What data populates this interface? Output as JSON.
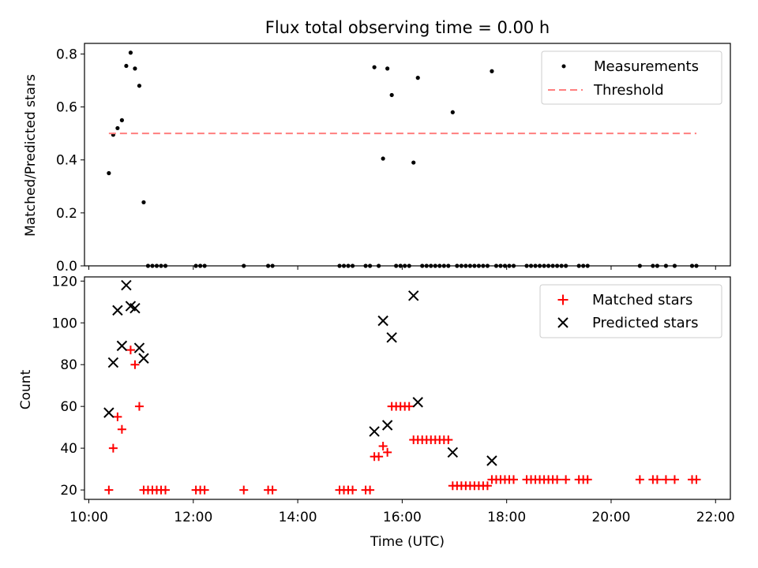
{
  "chart_data": [
    {
      "type": "scatter",
      "title": "Flux total observing time = 0.00 h",
      "xlabel": "",
      "ylabel": "Matched/Predicted stars",
      "xlim": [
        "09:55",
        "22:17"
      ],
      "ylim": [
        0,
        0.84
      ],
      "yticks": [
        "0.0",
        "0.2",
        "0.4",
        "0.6",
        "0.8"
      ],
      "legend_position": "top-right",
      "series": [
        {
          "name": "Measurements",
          "kind": "point",
          "color": "#000000",
          "points": [
            [
              "10:23",
              0.35
            ],
            [
              "10:28",
              0.495
            ],
            [
              "10:33",
              0.52
            ],
            [
              "10:38",
              0.55
            ],
            [
              "10:43",
              0.755
            ],
            [
              "10:48",
              0.805
            ],
            [
              "10:53",
              0.745
            ],
            [
              "10:58",
              0.68
            ],
            [
              "11:03",
              0.24
            ],
            [
              "11:08",
              0
            ],
            [
              "11:13",
              0
            ],
            [
              "11:18",
              0
            ],
            [
              "11:23",
              0
            ],
            [
              "11:28",
              0
            ],
            [
              "12:03",
              0
            ],
            [
              "12:08",
              0
            ],
            [
              "12:13",
              0
            ],
            [
              "12:58",
              0
            ],
            [
              "13:26",
              0
            ],
            [
              "13:31",
              0
            ],
            [
              "14:48",
              0
            ],
            [
              "14:53",
              0
            ],
            [
              "14:58",
              0
            ],
            [
              "15:03",
              0
            ],
            [
              "15:18",
              0
            ],
            [
              "15:23",
              0
            ],
            [
              "15:28",
              0.75
            ],
            [
              "15:33",
              0
            ],
            [
              "15:38",
              0.405
            ],
            [
              "15:43",
              0.745
            ],
            [
              "15:48",
              0.645
            ],
            [
              "15:53",
              0
            ],
            [
              "15:58",
              0
            ],
            [
              "16:03",
              0
            ],
            [
              "16:08",
              0
            ],
            [
              "16:13",
              0.39
            ],
            [
              "16:18",
              0.71
            ],
            [
              "16:23",
              0
            ],
            [
              "16:28",
              0
            ],
            [
              "16:33",
              0
            ],
            [
              "16:38",
              0
            ],
            [
              "16:43",
              0
            ],
            [
              "16:48",
              0
            ],
            [
              "16:53",
              0
            ],
            [
              "16:58",
              0.58
            ],
            [
              "17:03",
              0
            ],
            [
              "17:08",
              0
            ],
            [
              "17:13",
              0
            ],
            [
              "17:18",
              0
            ],
            [
              "17:23",
              0
            ],
            [
              "17:28",
              0
            ],
            [
              "17:33",
              0
            ],
            [
              "17:38",
              0
            ],
            [
              "17:43",
              0.735
            ],
            [
              "17:48",
              0
            ],
            [
              "17:53",
              0
            ],
            [
              "17:58",
              0
            ],
            [
              "18:03",
              0
            ],
            [
              "18:08",
              0
            ],
            [
              "18:23",
              0
            ],
            [
              "18:28",
              0
            ],
            [
              "18:33",
              0
            ],
            [
              "18:38",
              0
            ],
            [
              "18:43",
              0
            ],
            [
              "18:48",
              0
            ],
            [
              "18:53",
              0
            ],
            [
              "18:58",
              0
            ],
            [
              "19:03",
              0
            ],
            [
              "19:08",
              0
            ],
            [
              "19:23",
              0
            ],
            [
              "19:28",
              0
            ],
            [
              "19:33",
              0
            ],
            [
              "20:33",
              0
            ],
            [
              "20:48",
              0
            ],
            [
              "20:53",
              0
            ],
            [
              "21:03",
              0
            ],
            [
              "21:13",
              0
            ],
            [
              "21:33",
              0
            ],
            [
              "21:38",
              0
            ]
          ]
        },
        {
          "name": "Threshold",
          "kind": "line",
          "dash": "dashed",
          "color": "#ff7f7f",
          "points": [
            [
              "10:23",
              0.5
            ],
            [
              "21:38",
              0.5
            ]
          ]
        }
      ]
    },
    {
      "type": "scatter",
      "title": "",
      "xlabel": "Time (UTC)",
      "ylabel": "Count",
      "xlim": [
        "09:55",
        "22:17"
      ],
      "ylim": [
        15.5,
        122
      ],
      "yticks": [
        "20",
        "40",
        "60",
        "80",
        "100",
        "120"
      ],
      "xticks": [
        "10:00",
        "12:00",
        "14:00",
        "16:00",
        "18:00",
        "20:00",
        "22:00"
      ],
      "legend_position": "top-right",
      "series": [
        {
          "name": "Matched stars",
          "kind": "plus",
          "color": "#ff0000",
          "points": [
            [
              "10:23",
              20
            ],
            [
              "10:28",
              40
            ],
            [
              "10:33",
              55
            ],
            [
              "10:38",
              49
            ],
            [
              "10:48",
              87
            ],
            [
              "10:53",
              80
            ],
            [
              "10:58",
              60
            ],
            [
              "11:03",
              20
            ],
            [
              "11:08",
              20
            ],
            [
              "11:13",
              20
            ],
            [
              "11:18",
              20
            ],
            [
              "11:23",
              20
            ],
            [
              "11:28",
              20
            ],
            [
              "12:03",
              20
            ],
            [
              "12:08",
              20
            ],
            [
              "12:13",
              20
            ],
            [
              "12:58",
              20
            ],
            [
              "13:26",
              20
            ],
            [
              "13:31",
              20
            ],
            [
              "14:48",
              20
            ],
            [
              "14:53",
              20
            ],
            [
              "14:58",
              20
            ],
            [
              "15:03",
              20
            ],
            [
              "15:18",
              20
            ],
            [
              "15:23",
              20
            ],
            [
              "15:28",
              36
            ],
            [
              "15:33",
              36
            ],
            [
              "15:38",
              41
            ],
            [
              "15:43",
              38
            ],
            [
              "15:48",
              60
            ],
            [
              "15:53",
              60
            ],
            [
              "15:58",
              60
            ],
            [
              "16:03",
              60
            ],
            [
              "16:08",
              60
            ],
            [
              "16:13",
              44
            ],
            [
              "16:18",
              44
            ],
            [
              "16:23",
              44
            ],
            [
              "16:28",
              44
            ],
            [
              "16:33",
              44
            ],
            [
              "16:38",
              44
            ],
            [
              "16:43",
              44
            ],
            [
              "16:48",
              44
            ],
            [
              "16:53",
              44
            ],
            [
              "16:58",
              22
            ],
            [
              "17:03",
              22
            ],
            [
              "17:08",
              22
            ],
            [
              "17:13",
              22
            ],
            [
              "17:18",
              22
            ],
            [
              "17:23",
              22
            ],
            [
              "17:28",
              22
            ],
            [
              "17:33",
              22
            ],
            [
              "17:38",
              22
            ],
            [
              "17:43",
              25
            ],
            [
              "17:48",
              25
            ],
            [
              "17:53",
              25
            ],
            [
              "17:58",
              25
            ],
            [
              "18:03",
              25
            ],
            [
              "18:08",
              25
            ],
            [
              "18:23",
              25
            ],
            [
              "18:28",
              25
            ],
            [
              "18:33",
              25
            ],
            [
              "18:38",
              25
            ],
            [
              "18:43",
              25
            ],
            [
              "18:48",
              25
            ],
            [
              "18:53",
              25
            ],
            [
              "18:58",
              25
            ],
            [
              "19:08",
              25
            ],
            [
              "19:23",
              25
            ],
            [
              "19:28",
              25
            ],
            [
              "19:33",
              25
            ],
            [
              "20:33",
              25
            ],
            [
              "20:48",
              25
            ],
            [
              "20:53",
              25
            ],
            [
              "21:03",
              25
            ],
            [
              "21:13",
              25
            ],
            [
              "21:33",
              25
            ],
            [
              "21:38",
              25
            ]
          ]
        },
        {
          "name": "Predicted stars",
          "kind": "x",
          "color": "#000000",
          "points": [
            [
              "10:23",
              57
            ],
            [
              "10:28",
              81
            ],
            [
              "10:33",
              106
            ],
            [
              "10:38",
              89
            ],
            [
              "10:43",
              118
            ],
            [
              "10:48",
              108
            ],
            [
              "10:53",
              107
            ],
            [
              "10:58",
              88
            ],
            [
              "11:03",
              83
            ],
            [
              "15:28",
              48
            ],
            [
              "15:38",
              101
            ],
            [
              "15:43",
              51
            ],
            [
              "15:48",
              93
            ],
            [
              "16:13",
              113
            ],
            [
              "16:18",
              62
            ],
            [
              "16:58",
              38
            ],
            [
              "17:43",
              34
            ]
          ]
        }
      ]
    }
  ]
}
